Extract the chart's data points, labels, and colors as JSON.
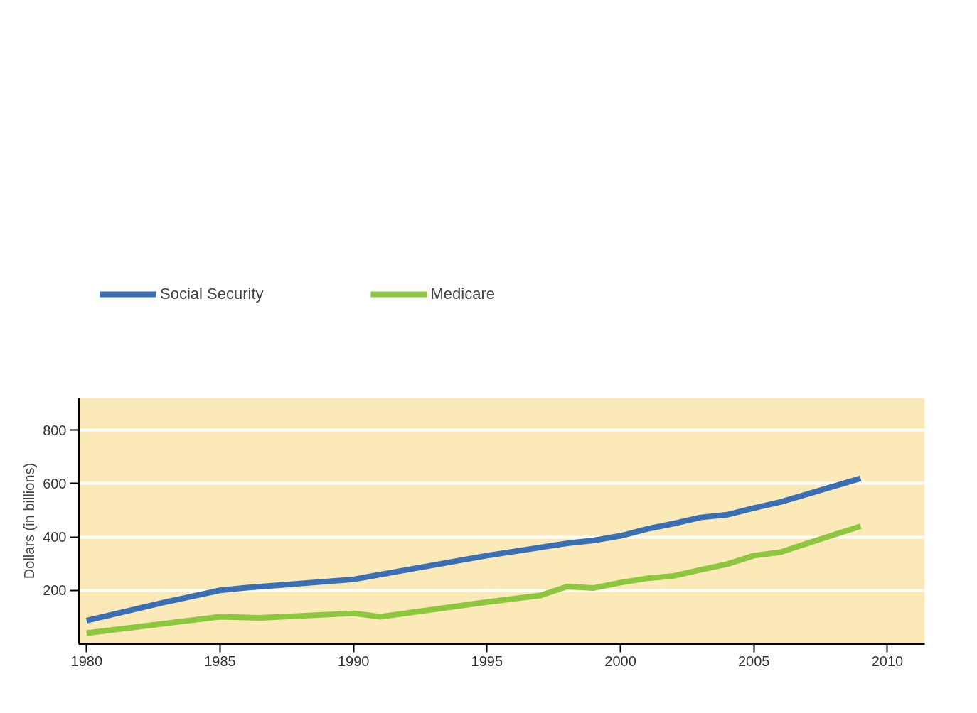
{
  "chart_data": {
    "type": "line",
    "ylabel": "Dollars (in billions)",
    "xlim": [
      1979.7,
      2011.4
    ],
    "ylim": [
      0,
      920
    ],
    "xticks": [
      1980,
      1985,
      1990,
      1995,
      2000,
      2005,
      2010
    ],
    "yticks": [
      200,
      400,
      600,
      800
    ],
    "grid": "y",
    "legend": "top left",
    "marker": "none",
    "line_style": "solid",
    "series": [
      {
        "name": "Social Security",
        "color": "#3a6fb5",
        "x": [
          1980,
          1983,
          1985,
          1986,
          1990,
          1992,
          1995,
          1998,
          1999,
          2000,
          2001,
          2002,
          2003,
          2004,
          2005,
          2006,
          2009
        ],
        "values": [
          87,
          157,
          200,
          210,
          241,
          277,
          330,
          376,
          387,
          404,
          430,
          450,
          473,
          483,
          508,
          531,
          619
        ]
      },
      {
        "name": "Medicare",
        "color": "#8dc63f",
        "x": [
          1980,
          1985,
          1986.5,
          1990,
          1991,
          1995,
          1997,
          1998,
          1999,
          2000,
          2001,
          2002,
          2003,
          2004,
          2005,
          2006,
          2007,
          2009
        ],
        "values": [
          40,
          101,
          97,
          114,
          101,
          156,
          181,
          214,
          209,
          229,
          245,
          254,
          277,
          298,
          330,
          343,
          376,
          440
        ]
      }
    ]
  }
}
